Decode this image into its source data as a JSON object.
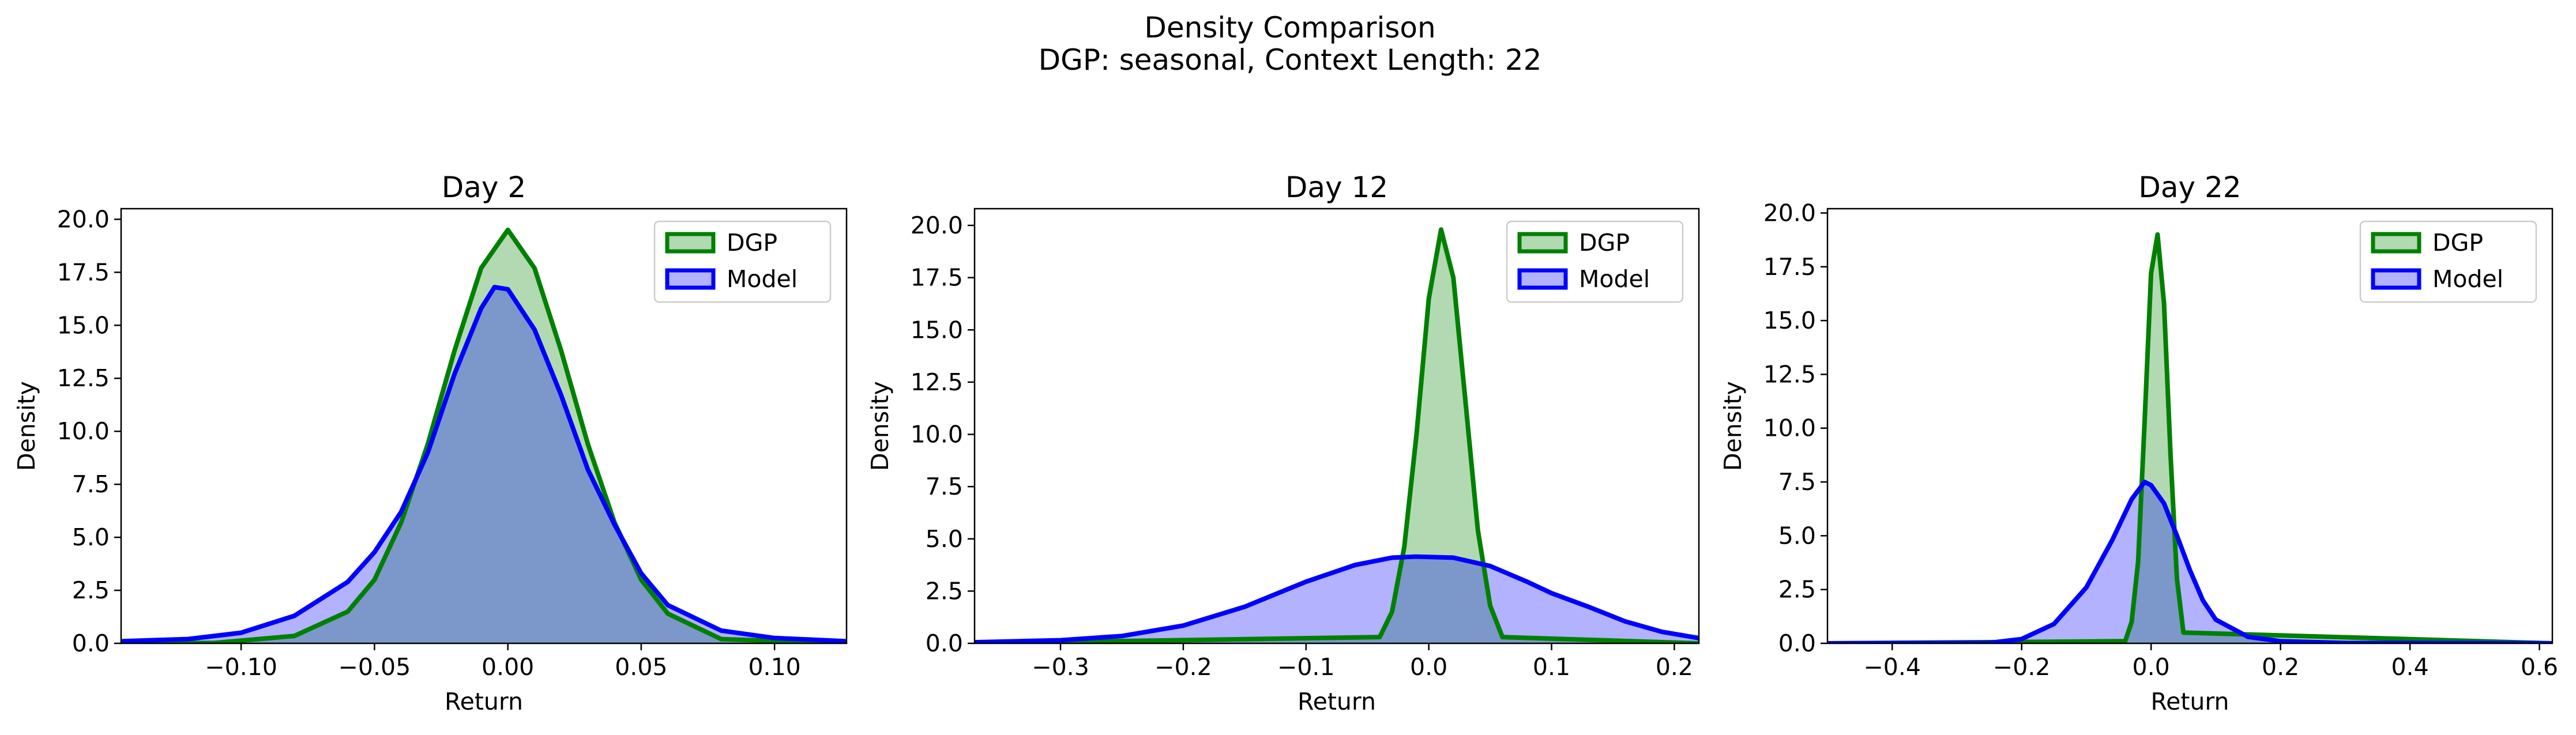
{
  "figure": {
    "title_line1": "Density Comparison",
    "title_line2": "DGP: seasonal, Context Length: 22"
  },
  "colors": {
    "dgp": "#008000",
    "model": "#0000ff"
  },
  "chart_data": [
    {
      "type": "area",
      "title": "Day 2",
      "xlabel": "Return",
      "ylabel": "Density",
      "xlim": [
        -0.145,
        0.127
      ],
      "ylim": [
        0,
        20.5
      ],
      "xticks": [
        -0.1,
        -0.05,
        0.0,
        0.05,
        0.1
      ],
      "xtick_labels": [
        "−0.10",
        "−0.05",
        "0.00",
        "0.05",
        "0.10"
      ],
      "yticks": [
        0,
        2.5,
        5,
        7.5,
        10,
        12.5,
        15,
        17.5,
        20
      ],
      "ytick_labels": [
        "0.0",
        "2.5",
        "5.0",
        "7.5",
        "10.0",
        "12.5",
        "15.0",
        "17.5",
        "20.0"
      ],
      "grid": false,
      "legend": "upper right",
      "series": [
        {
          "name": "DGP",
          "color": "#008000",
          "x": [
            -0.145,
            -0.11,
            -0.08,
            -0.06,
            -0.05,
            -0.04,
            -0.03,
            -0.02,
            -0.01,
            0.0,
            0.01,
            0.02,
            0.03,
            0.04,
            0.05,
            0.06,
            0.08,
            0.127
          ],
          "y": [
            0,
            0.02,
            0.35,
            1.5,
            3.0,
            5.7,
            9.4,
            13.8,
            17.7,
            19.5,
            17.7,
            13.8,
            9.4,
            5.7,
            3.0,
            1.4,
            0.2,
            0
          ]
        },
        {
          "name": "Model",
          "color": "#0000ff",
          "x": [
            -0.145,
            -0.12,
            -0.1,
            -0.08,
            -0.06,
            -0.05,
            -0.04,
            -0.03,
            -0.02,
            -0.01,
            -0.005,
            0.0,
            0.01,
            0.02,
            0.03,
            0.04,
            0.05,
            0.06,
            0.08,
            0.1,
            0.127
          ],
          "y": [
            0.1,
            0.2,
            0.5,
            1.3,
            2.9,
            4.3,
            6.2,
            9.0,
            12.7,
            15.8,
            16.8,
            16.7,
            14.8,
            11.7,
            8.2,
            5.6,
            3.3,
            1.8,
            0.6,
            0.25,
            0.1
          ]
        }
      ]
    },
    {
      "type": "area",
      "title": "Day 12",
      "xlabel": "Return",
      "ylabel": "Density",
      "xlim": [
        -0.37,
        0.22
      ],
      "ylim": [
        0,
        20.8
      ],
      "xticks": [
        -0.3,
        -0.2,
        -0.1,
        0.0,
        0.1,
        0.2
      ],
      "xtick_labels": [
        "−0.3",
        "−0.2",
        "−0.1",
        "0.0",
        "0.1",
        "0.2"
      ],
      "yticks": [
        0,
        2.5,
        5,
        7.5,
        10,
        12.5,
        15,
        17.5,
        20
      ],
      "ytick_labels": [
        "0.0",
        "2.5",
        "5.0",
        "7.5",
        "10.0",
        "12.5",
        "15.0",
        "17.5",
        "20.0"
      ],
      "grid": false,
      "legend": "upper right",
      "series": [
        {
          "name": "DGP",
          "color": "#008000",
          "x": [
            -0.37,
            -0.04,
            -0.03,
            -0.02,
            -0.01,
            0.0,
            0.01,
            0.02,
            0.03,
            0.04,
            0.05,
            0.06,
            0.22
          ],
          "y": [
            0,
            0.3,
            1.5,
            4.6,
            10.0,
            16.5,
            19.8,
            17.5,
            11.5,
            5.4,
            1.8,
            0.3,
            0
          ]
        },
        {
          "name": "Model",
          "color": "#0000ff",
          "x": [
            -0.37,
            -0.3,
            -0.25,
            -0.2,
            -0.15,
            -0.1,
            -0.06,
            -0.03,
            -0.01,
            0.02,
            0.05,
            0.08,
            0.1,
            0.13,
            0.16,
            0.19,
            0.22
          ],
          "y": [
            0.05,
            0.15,
            0.35,
            0.85,
            1.75,
            2.95,
            3.75,
            4.1,
            4.15,
            4.1,
            3.7,
            2.95,
            2.4,
            1.75,
            1.05,
            0.55,
            0.25
          ]
        }
      ]
    },
    {
      "type": "area",
      "title": "Day 22",
      "xlabel": "Return",
      "ylabel": "Density",
      "xlim": [
        -0.5,
        0.62
      ],
      "ylim": [
        0,
        20.2
      ],
      "xticks": [
        -0.4,
        -0.2,
        0.0,
        0.2,
        0.4,
        0.6
      ],
      "xtick_labels": [
        "−0.4",
        "−0.2",
        "0.0",
        "0.2",
        "0.4",
        "0.6"
      ],
      "yticks": [
        0,
        2.5,
        5,
        7.5,
        10,
        12.5,
        15,
        17.5,
        20
      ],
      "ytick_labels": [
        "0.0",
        "2.5",
        "5.0",
        "7.5",
        "10.0",
        "12.5",
        "15.0",
        "17.5",
        "20.0"
      ],
      "grid": false,
      "legend": "upper right",
      "series": [
        {
          "name": "DGP",
          "color": "#008000",
          "x": [
            -0.5,
            -0.04,
            -0.03,
            -0.02,
            -0.01,
            0.0,
            0.01,
            0.02,
            0.03,
            0.04,
            0.05,
            0.62
          ],
          "y": [
            0,
            0.1,
            1.0,
            3.8,
            10.3,
            17.2,
            19.0,
            15.8,
            8.8,
            3.0,
            0.5,
            0
          ]
        },
        {
          "name": "Model",
          "color": "#0000ff",
          "x": [
            -0.5,
            -0.25,
            -0.2,
            -0.15,
            -0.1,
            -0.06,
            -0.03,
            -0.01,
            0.0,
            0.02,
            0.04,
            0.06,
            0.08,
            0.1,
            0.15,
            0.2,
            0.3,
            0.62
          ],
          "y": [
            0,
            0.02,
            0.2,
            0.9,
            2.6,
            4.8,
            6.7,
            7.5,
            7.35,
            6.5,
            5.0,
            3.4,
            2.0,
            1.1,
            0.3,
            0.1,
            0.02,
            0
          ]
        }
      ]
    }
  ]
}
